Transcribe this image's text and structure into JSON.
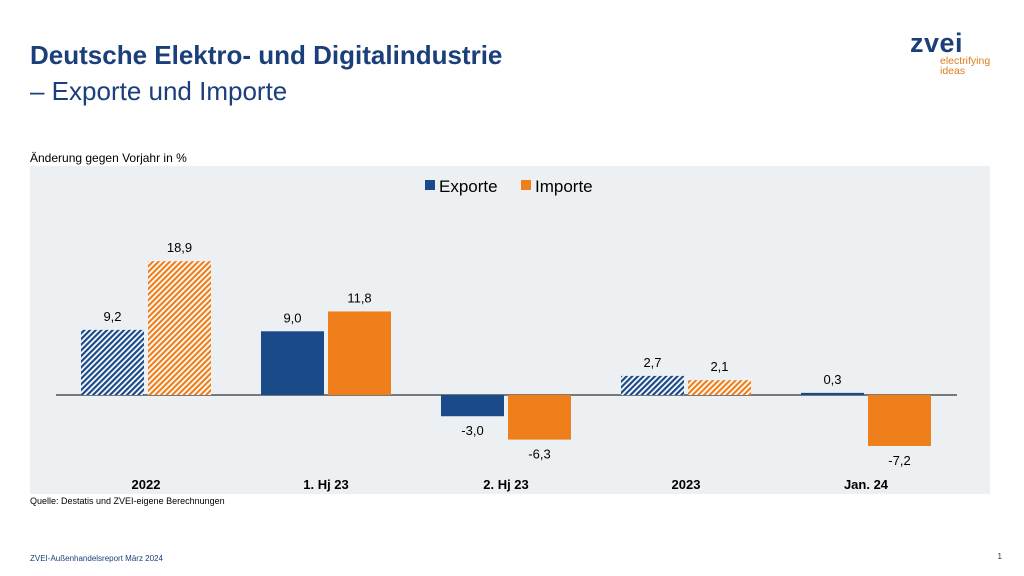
{
  "title": "Deutsche Elektro- und Digitalindustrie",
  "subtitle": "– Exporte und Importe",
  "logo": {
    "name": "zvei",
    "tagline_1": "electrifying",
    "tagline_2": "ideas"
  },
  "source": "Quelle: Destatis und ZVEI-eigene Berechnungen",
  "footer": "ZVEI-Außenhandelsreport März 2024",
  "page_number": "1",
  "chart_data": {
    "type": "bar",
    "ylabel": "Änderung gegen Vorjahr in %",
    "categories": [
      "2022",
      "1. Hj 23",
      "2. Hj 23",
      "2023",
      "Jan. 24"
    ],
    "hatched_categories": [
      "2022",
      "2023"
    ],
    "series": [
      {
        "name": "Exporte",
        "color": "#1a4a8a",
        "values": [
          9.2,
          9.0,
          -3.0,
          2.7,
          0.3
        ],
        "labels": [
          "9,2",
          "9,0",
          "-3,0",
          "2,7",
          "0,3"
        ]
      },
      {
        "name": "Importe",
        "color": "#ee7f1b",
        "values": [
          18.9,
          11.8,
          -6.3,
          2.1,
          -7.2
        ],
        "labels": [
          "18,9",
          "11,8",
          "-6,3",
          "2,1",
          "-7,2"
        ]
      }
    ],
    "legend": "top-center",
    "grid": false
  }
}
